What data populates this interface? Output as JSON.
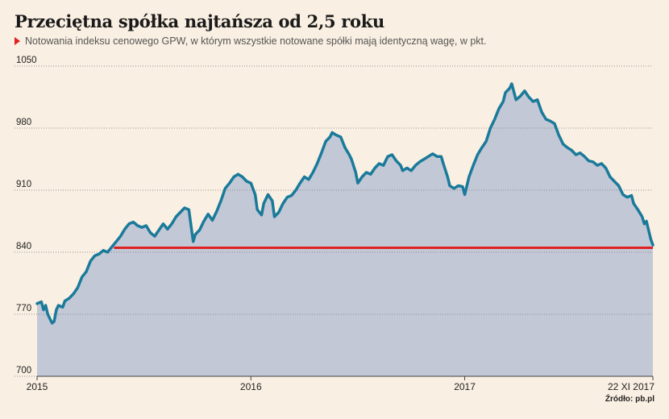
{
  "title": "Przeciętna spółka najtańsza od 2,5 roku",
  "subtitle": "Notowania indeksu cenowego GPW, w którym wszystkie notowane spółki mają identyczną wagę, w pkt.",
  "source": "Źródło: pb.pl",
  "colors": {
    "line": "#1a7a9a",
    "area": "#c3c8d6",
    "reference": "#e02020",
    "background": "#f9efe2"
  },
  "chart_data": {
    "type": "area",
    "y_range": [
      700,
      1050
    ],
    "y_ticks": [
      700,
      770,
      840,
      910,
      980,
      1050
    ],
    "y_tick_labels": [
      "700",
      "770",
      "840",
      "910",
      "980",
      "1050"
    ],
    "x_range": [
      2015.0,
      2017.88
    ],
    "x_ticks": [
      {
        "x": 2015.0,
        "label": "2015"
      },
      {
        "x": 2016.0,
        "label": "2016"
      },
      {
        "x": 2017.0,
        "label": "2017"
      },
      {
        "x": 2017.88,
        "label": "22 XI 2017"
      }
    ],
    "grid": "horizontal-dotted",
    "reference_line": {
      "y": 845,
      "x_start": 2015.36,
      "x_end": 2017.88
    },
    "series": [
      {
        "points": [
          [
            2015.0,
            782
          ],
          [
            2015.02,
            784
          ],
          [
            2015.03,
            775
          ],
          [
            2015.04,
            780
          ],
          [
            2015.05,
            770
          ],
          [
            2015.06,
            765
          ],
          [
            2015.07,
            760
          ],
          [
            2015.08,
            762
          ],
          [
            2015.09,
            775
          ],
          [
            2015.1,
            780
          ],
          [
            2015.12,
            778
          ],
          [
            2015.13,
            785
          ],
          [
            2015.15,
            788
          ],
          [
            2015.17,
            793
          ],
          [
            2015.19,
            800
          ],
          [
            2015.21,
            812
          ],
          [
            2015.23,
            818
          ],
          [
            2015.25,
            830
          ],
          [
            2015.27,
            836
          ],
          [
            2015.29,
            838
          ],
          [
            2015.31,
            842
          ],
          [
            2015.33,
            840
          ],
          [
            2015.35,
            846
          ],
          [
            2015.37,
            852
          ],
          [
            2015.39,
            858
          ],
          [
            2015.41,
            866
          ],
          [
            2015.43,
            872
          ],
          [
            2015.45,
            874
          ],
          [
            2015.47,
            870
          ],
          [
            2015.49,
            868
          ],
          [
            2015.51,
            870
          ],
          [
            2015.53,
            862
          ],
          [
            2015.55,
            858
          ],
          [
            2015.57,
            865
          ],
          [
            2015.59,
            872
          ],
          [
            2015.61,
            866
          ],
          [
            2015.63,
            872
          ],
          [
            2015.65,
            880
          ],
          [
            2015.67,
            885
          ],
          [
            2015.69,
            890
          ],
          [
            2015.71,
            888
          ],
          [
            2015.72,
            870
          ],
          [
            2015.73,
            852
          ],
          [
            2015.74,
            860
          ],
          [
            2015.76,
            865
          ],
          [
            2015.78,
            875
          ],
          [
            2015.8,
            883
          ],
          [
            2015.82,
            876
          ],
          [
            2015.84,
            886
          ],
          [
            2015.86,
            898
          ],
          [
            2015.88,
            912
          ],
          [
            2015.9,
            918
          ],
          [
            2015.92,
            925
          ],
          [
            2015.94,
            928
          ],
          [
            2015.96,
            925
          ],
          [
            2015.98,
            920
          ],
          [
            2016.0,
            918
          ],
          [
            2016.02,
            905
          ],
          [
            2016.03,
            888
          ],
          [
            2016.05,
            882
          ],
          [
            2016.06,
            895
          ],
          [
            2016.08,
            905
          ],
          [
            2016.1,
            898
          ],
          [
            2016.11,
            880
          ],
          [
            2016.13,
            885
          ],
          [
            2016.15,
            895
          ],
          [
            2016.17,
            902
          ],
          [
            2016.19,
            904
          ],
          [
            2016.21,
            910
          ],
          [
            2016.23,
            918
          ],
          [
            2016.25,
            925
          ],
          [
            2016.27,
            922
          ],
          [
            2016.29,
            930
          ],
          [
            2016.31,
            940
          ],
          [
            2016.33,
            952
          ],
          [
            2016.35,
            965
          ],
          [
            2016.37,
            970
          ],
          [
            2016.38,
            975
          ],
          [
            2016.4,
            972
          ],
          [
            2016.42,
            970
          ],
          [
            2016.44,
            958
          ],
          [
            2016.46,
            950
          ],
          [
            2016.47,
            945
          ],
          [
            2016.49,
            930
          ],
          [
            2016.5,
            918
          ],
          [
            2016.52,
            925
          ],
          [
            2016.54,
            930
          ],
          [
            2016.56,
            928
          ],
          [
            2016.58,
            935
          ],
          [
            2016.6,
            940
          ],
          [
            2016.62,
            938
          ],
          [
            2016.64,
            948
          ],
          [
            2016.66,
            950
          ],
          [
            2016.68,
            943
          ],
          [
            2016.7,
            938
          ],
          [
            2016.71,
            932
          ],
          [
            2016.73,
            935
          ],
          [
            2016.75,
            932
          ],
          [
            2016.77,
            938
          ],
          [
            2016.79,
            942
          ],
          [
            2016.81,
            945
          ],
          [
            2016.83,
            948
          ],
          [
            2016.85,
            951
          ],
          [
            2016.87,
            948
          ],
          [
            2016.89,
            948
          ],
          [
            2016.9,
            940
          ],
          [
            2016.92,
            925
          ],
          [
            2016.93,
            915
          ],
          [
            2016.95,
            912
          ],
          [
            2016.97,
            915
          ],
          [
            2016.99,
            914
          ],
          [
            2017.0,
            905
          ],
          [
            2017.02,
            925
          ],
          [
            2017.04,
            938
          ],
          [
            2017.06,
            950
          ],
          [
            2017.08,
            958
          ],
          [
            2017.1,
            965
          ],
          [
            2017.12,
            980
          ],
          [
            2017.14,
            990
          ],
          [
            2017.16,
            1002
          ],
          [
            2017.18,
            1010
          ],
          [
            2017.19,
            1020
          ],
          [
            2017.21,
            1025
          ],
          [
            2017.22,
            1030
          ],
          [
            2017.24,
            1012
          ],
          [
            2017.26,
            1016
          ],
          [
            2017.28,
            1022
          ],
          [
            2017.3,
            1015
          ],
          [
            2017.32,
            1010
          ],
          [
            2017.34,
            1012
          ],
          [
            2017.36,
            998
          ],
          [
            2017.38,
            990
          ],
          [
            2017.4,
            988
          ],
          [
            2017.42,
            985
          ],
          [
            2017.44,
            972
          ],
          [
            2017.46,
            962
          ],
          [
            2017.48,
            958
          ],
          [
            2017.5,
            955
          ],
          [
            2017.52,
            950
          ],
          [
            2017.54,
            952
          ],
          [
            2017.56,
            948
          ],
          [
            2017.58,
            943
          ],
          [
            2017.6,
            942
          ],
          [
            2017.62,
            938
          ],
          [
            2017.64,
            940
          ],
          [
            2017.66,
            935
          ],
          [
            2017.68,
            925
          ],
          [
            2017.7,
            920
          ],
          [
            2017.72,
            915
          ],
          [
            2017.74,
            905
          ],
          [
            2017.76,
            902
          ],
          [
            2017.78,
            904
          ],
          [
            2017.79,
            895
          ],
          [
            2017.81,
            888
          ],
          [
            2017.83,
            880
          ],
          [
            2017.84,
            872
          ],
          [
            2017.85,
            875
          ],
          [
            2017.87,
            855
          ],
          [
            2017.88,
            848
          ]
        ]
      }
    ]
  }
}
